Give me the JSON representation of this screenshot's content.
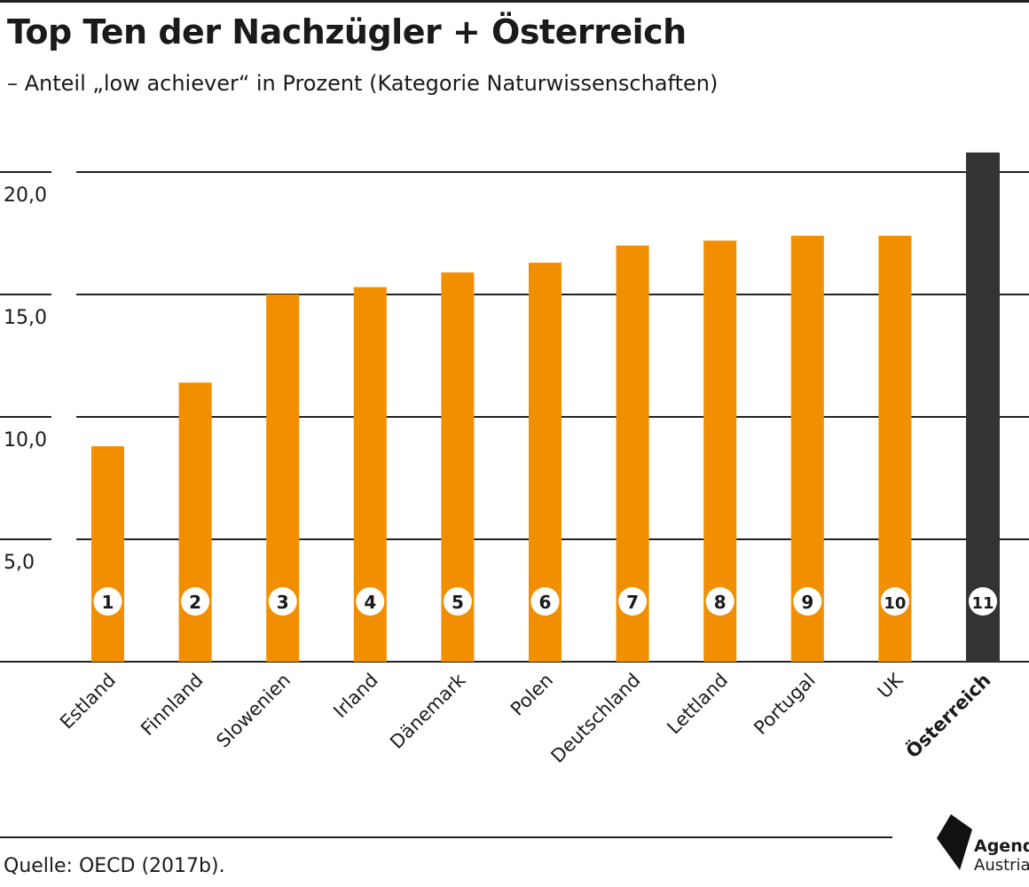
{
  "title": "Top Ten der Nachzügler + Österreich",
  "subtitle": "– Anteil „low achiever“ in Prozent (Kategorie Naturwissenschaften)",
  "source": "Quelle: OECD (2017b).",
  "logo": {
    "line1": "Agenda",
    "line2": "Austria",
    "icon": "agenda-austria-logo-icon"
  },
  "colors": {
    "bar": "#F18F01",
    "highlight": "#333333",
    "grid": "#222222",
    "badge": "#ffffff"
  },
  "chart_data": {
    "type": "bar",
    "title": "Top Ten der Nachzügler + Österreich",
    "subtitle": "– Anteil „low achiever“ in Prozent (Kategorie Naturwissenschaften)",
    "categories": [
      "Estland",
      "Finnland",
      "Slowenien",
      "Irland",
      "Dänemark",
      "Polen",
      "Deutschland",
      "Lettland",
      "Portugal",
      "UK",
      "Österreich"
    ],
    "values": [
      8.8,
      11.4,
      15.0,
      15.3,
      15.9,
      16.3,
      17.0,
      17.2,
      17.4,
      17.4,
      20.8
    ],
    "ranks": [
      "1",
      "2",
      "3",
      "4",
      "5",
      "6",
      "7",
      "8",
      "9",
      "10",
      "11"
    ],
    "highlight": "Österreich",
    "yticks": [
      5,
      10,
      15,
      20
    ],
    "ytick_labels": [
      "5,0",
      "10,0",
      "15,0",
      "20,0"
    ],
    "ylim": [
      0,
      20
    ],
    "xlabel": "",
    "ylabel": "",
    "grid": true,
    "legend": "none"
  }
}
